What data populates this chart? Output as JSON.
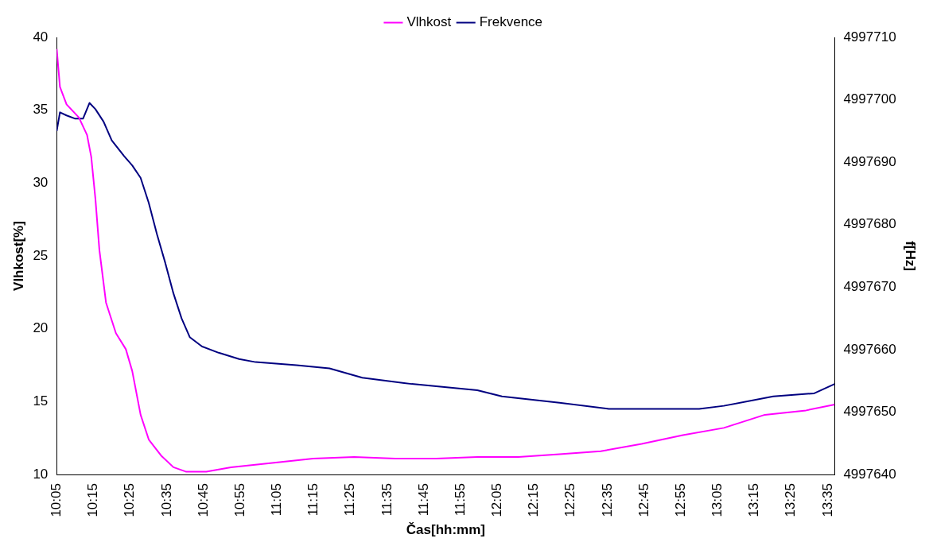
{
  "chart_data": {
    "type": "line",
    "xlabel": "Čas[hh:mm]",
    "ylabel": "Vlhkost[%]",
    "y2label": "f[Hz]",
    "legend": "top",
    "marker": "none",
    "grid": false,
    "xlim": [
      10.0833,
      13.614
    ],
    "xticks": [
      {
        "value": 10.0833,
        "label": "10:05"
      },
      {
        "value": 10.25,
        "label": "10:15"
      },
      {
        "value": 10.4167,
        "label": "10:25"
      },
      {
        "value": 10.5833,
        "label": "10:35"
      },
      {
        "value": 10.75,
        "label": "10:45"
      },
      {
        "value": 10.9167,
        "label": "10:55"
      },
      {
        "value": 11.0833,
        "label": "11:05"
      },
      {
        "value": 11.25,
        "label": "11:15"
      },
      {
        "value": 11.4167,
        "label": "11:25"
      },
      {
        "value": 11.5833,
        "label": "11:35"
      },
      {
        "value": 11.75,
        "label": "11:45"
      },
      {
        "value": 11.9167,
        "label": "11:55"
      },
      {
        "value": 12.0833,
        "label": "12:05"
      },
      {
        "value": 12.25,
        "label": "12:15"
      },
      {
        "value": 12.4167,
        "label": "12:25"
      },
      {
        "value": 12.5833,
        "label": "12:35"
      },
      {
        "value": 12.75,
        "label": "12:45"
      },
      {
        "value": 12.9167,
        "label": "12:55"
      },
      {
        "value": 13.0833,
        "label": "13:05"
      },
      {
        "value": 13.25,
        "label": "13:15"
      },
      {
        "value": 13.4167,
        "label": "13:25"
      },
      {
        "value": 13.5833,
        "label": "13:35"
      }
    ],
    "ylim": [
      10,
      40
    ],
    "yticks": [
      10,
      15,
      20,
      25,
      30,
      35,
      40
    ],
    "y2lim": [
      4997640,
      4997710
    ],
    "y2ticks": [
      4997640,
      4997650,
      4997660,
      4997670,
      4997680,
      4997690,
      4997700,
      4997710
    ],
    "series": [
      {
        "name": "Vlhkost",
        "color": "#ff00ff",
        "x": [
          10.0833,
          10.098,
          10.128,
          10.184,
          10.221,
          10.24,
          10.259,
          10.277,
          10.307,
          10.352,
          10.397,
          10.426,
          10.464,
          10.501,
          10.557,
          10.613,
          10.669,
          10.762,
          10.874,
          11.061,
          11.247,
          11.433,
          11.62,
          11.806,
          11.992,
          12.179,
          12.365,
          12.552,
          12.738,
          12.925,
          13.111,
          13.297,
          13.484,
          13.614
        ],
        "values": [
          39.2,
          36.6,
          35.4,
          34.5,
          33.3,
          31.8,
          28.9,
          25.4,
          21.8,
          19.7,
          18.6,
          17.1,
          14.1,
          12.4,
          11.3,
          10.5,
          10.2,
          10.2,
          10.5,
          10.8,
          11.1,
          11.2,
          11.1,
          11.1,
          11.2,
          11.2,
          11.4,
          11.6,
          12.1,
          12.7,
          13.2,
          14.1,
          14.4,
          14.8
        ]
      },
      {
        "name": "Frekvence",
        "color": "#000080",
        "axis": "y2",
        "x": [
          10.0833,
          10.098,
          10.128,
          10.165,
          10.203,
          10.232,
          10.259,
          10.296,
          10.333,
          10.389,
          10.426,
          10.464,
          10.501,
          10.538,
          10.575,
          10.613,
          10.65,
          10.687,
          10.743,
          10.818,
          10.911,
          10.986,
          11.172,
          11.321,
          11.47,
          11.694,
          11.992,
          12.104,
          12.365,
          12.589,
          12.999,
          13.111,
          13.335,
          13.521,
          13.614
        ],
        "values": [
          4997695,
          4997698,
          4997697.5,
          4997697,
          4997697,
          4997699.5,
          4997698.5,
          4997696.5,
          4997693.5,
          4997691,
          4997689.5,
          4997687.5,
          4997683.5,
          4997678.5,
          4997674,
          4997669,
          4997665,
          4997662,
          4997660.5,
          4997659.5,
          4997658.5,
          4997658,
          4997657.5,
          4997657,
          4997655.5,
          4997654.5,
          4997653.5,
          4997652.5,
          4997651.5,
          4997650.5,
          4997650.5,
          4997651,
          4997652.5,
          4997653,
          4997654.5
        ]
      }
    ]
  }
}
